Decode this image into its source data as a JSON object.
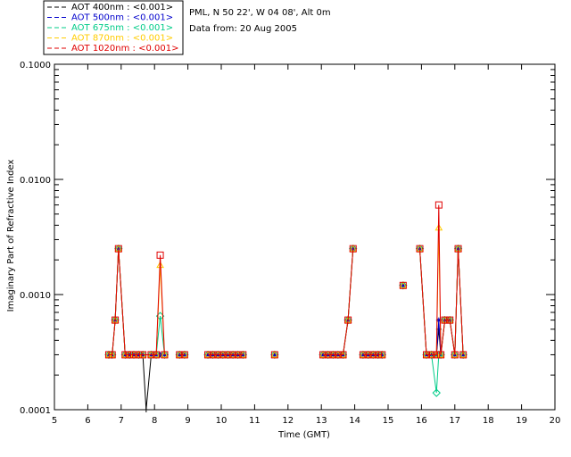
{
  "info": {
    "line1": "PML, N 50 22', W 04 08', Alt 0m",
    "line2": "Data from: 20 Aug 2005"
  },
  "chart_data": {
    "type": "line",
    "xlabel": "Time (GMT)",
    "ylabel": "Imaginary Part of Refractive Index",
    "xlim": [
      5,
      20
    ],
    "ylim": [
      0.0001,
      0.1
    ],
    "yscale": "log",
    "xticks": [
      5,
      6,
      7,
      8,
      9,
      10,
      11,
      12,
      13,
      14,
      15,
      16,
      17,
      18,
      19,
      20
    ],
    "yticks": [
      {
        "value": 0.0001,
        "label": "0.0001"
      },
      {
        "value": 0.001,
        "label": "0.0010"
      },
      {
        "value": 0.01,
        "label": "0.0100"
      },
      {
        "value": 0.1,
        "label": "0.1000"
      }
    ],
    "legend_position": "top-left",
    "series": [
      {
        "name": "AOT  400nm : <0.001>",
        "color": "#000000",
        "marker": "plus",
        "points": [
          [
            6.63,
            0.0003
          ],
          [
            6.73,
            0.0003
          ],
          [
            6.82,
            0.0006
          ],
          [
            6.92,
            0.0025
          ],
          [
            7.12,
            0.0003
          ],
          [
            7.25,
            0.0003
          ],
          [
            7.38,
            0.0003
          ],
          [
            7.52,
            0.0003
          ],
          [
            7.65,
            0.0003
          ],
          [
            7.75,
            0.0001
          ],
          [
            7.9,
            0.0003
          ],
          [
            8.05,
            0.0003
          ],
          [
            8.17,
            0.0003
          ],
          [
            8.3,
            0.0003
          ],
          null,
          [
            8.75,
            0.0003
          ],
          [
            8.9,
            0.0003
          ],
          null,
          [
            9.6,
            0.0003
          ],
          [
            9.75,
            0.0003
          ],
          [
            9.9,
            0.0003
          ],
          [
            10.05,
            0.0003
          ],
          [
            10.2,
            0.0003
          ],
          [
            10.35,
            0.0003
          ],
          [
            10.5,
            0.0003
          ],
          [
            10.65,
            0.0003
          ],
          null,
          [
            11.6,
            0.0003
          ],
          null,
          [
            13.05,
            0.0003
          ],
          [
            13.2,
            0.0003
          ],
          [
            13.35,
            0.0003
          ],
          [
            13.5,
            0.0003
          ],
          [
            13.65,
            0.0003
          ],
          [
            13.8,
            0.0006
          ],
          [
            13.95,
            0.0025
          ],
          null,
          [
            14.25,
            0.0003
          ],
          [
            14.4,
            0.0003
          ],
          [
            14.55,
            0.0003
          ],
          [
            14.7,
            0.0003
          ],
          [
            14.82,
            0.0003
          ],
          null,
          [
            15.45,
            0.0012
          ],
          null,
          [
            15.95,
            0.0025
          ],
          [
            16.15,
            0.0003
          ],
          [
            16.3,
            0.0003
          ],
          [
            16.45,
            0.0003
          ],
          [
            16.52,
            0.0005
          ],
          [
            16.58,
            0.0003
          ],
          [
            16.7,
            0.0006
          ],
          [
            16.85,
            0.0006
          ],
          [
            17.0,
            0.0003
          ],
          [
            17.1,
            0.0025
          ],
          [
            17.25,
            0.0003
          ]
        ]
      },
      {
        "name": "AOT  500nm : <0.001>",
        "color": "#0000cc",
        "marker": "asterisk",
        "points": [
          [
            6.63,
            0.0003
          ],
          [
            6.73,
            0.0003
          ],
          [
            6.82,
            0.0006
          ],
          [
            6.92,
            0.0025
          ],
          [
            7.12,
            0.0003
          ],
          [
            7.25,
            0.0003
          ],
          [
            7.38,
            0.0003
          ],
          [
            7.52,
            0.0003
          ],
          [
            7.65,
            0.0003
          ],
          [
            7.9,
            0.0003
          ],
          [
            8.05,
            0.0003
          ],
          [
            8.17,
            0.0003
          ],
          [
            8.3,
            0.0003
          ],
          null,
          [
            8.75,
            0.0003
          ],
          [
            8.9,
            0.0003
          ],
          null,
          [
            9.6,
            0.0003
          ],
          [
            9.75,
            0.0003
          ],
          [
            9.9,
            0.0003
          ],
          [
            10.05,
            0.0003
          ],
          [
            10.2,
            0.0003
          ],
          [
            10.35,
            0.0003
          ],
          [
            10.5,
            0.0003
          ],
          [
            10.65,
            0.0003
          ],
          null,
          [
            11.6,
            0.0003
          ],
          null,
          [
            13.05,
            0.0003
          ],
          [
            13.2,
            0.0003
          ],
          [
            13.35,
            0.0003
          ],
          [
            13.5,
            0.0003
          ],
          [
            13.65,
            0.0003
          ],
          [
            13.8,
            0.0006
          ],
          [
            13.95,
            0.0025
          ],
          null,
          [
            14.25,
            0.0003
          ],
          [
            14.4,
            0.0003
          ],
          [
            14.55,
            0.0003
          ],
          [
            14.7,
            0.0003
          ],
          [
            14.82,
            0.0003
          ],
          null,
          [
            15.45,
            0.0012
          ],
          null,
          [
            15.95,
            0.0025
          ],
          [
            16.15,
            0.0003
          ],
          [
            16.3,
            0.0003
          ],
          [
            16.45,
            0.0003
          ],
          [
            16.52,
            0.0006
          ],
          [
            16.58,
            0.0003
          ],
          [
            16.7,
            0.0006
          ],
          [
            16.85,
            0.0006
          ],
          [
            17.0,
            0.0003
          ],
          [
            17.1,
            0.0025
          ],
          [
            17.25,
            0.0003
          ]
        ]
      },
      {
        "name": "AOT  675nm : <0.001>",
        "color": "#00cc88",
        "marker": "diamond",
        "points": [
          [
            6.63,
            0.0003
          ],
          [
            6.73,
            0.0003
          ],
          [
            6.82,
            0.0006
          ],
          [
            6.92,
            0.0025
          ],
          [
            7.12,
            0.0003
          ],
          [
            7.25,
            0.0003
          ],
          [
            7.38,
            0.0003
          ],
          [
            7.52,
            0.0003
          ],
          [
            7.65,
            0.0003
          ],
          [
            7.9,
            0.0003
          ],
          [
            8.05,
            0.0003
          ],
          [
            8.17,
            0.00065
          ],
          [
            8.3,
            0.0003
          ],
          null,
          [
            8.75,
            0.0003
          ],
          [
            8.9,
            0.0003
          ],
          null,
          [
            9.6,
            0.0003
          ],
          [
            9.75,
            0.0003
          ],
          [
            9.9,
            0.0003
          ],
          [
            10.05,
            0.0003
          ],
          [
            10.2,
            0.0003
          ],
          [
            10.35,
            0.0003
          ],
          [
            10.5,
            0.0003
          ],
          [
            10.65,
            0.0003
          ],
          null,
          [
            11.6,
            0.0003
          ],
          null,
          [
            13.05,
            0.0003
          ],
          [
            13.2,
            0.0003
          ],
          [
            13.35,
            0.0003
          ],
          [
            13.5,
            0.0003
          ],
          [
            13.65,
            0.0003
          ],
          [
            13.8,
            0.0006
          ],
          [
            13.95,
            0.0025
          ],
          null,
          [
            14.25,
            0.0003
          ],
          [
            14.4,
            0.0003
          ],
          [
            14.55,
            0.0003
          ],
          [
            14.7,
            0.0003
          ],
          [
            14.82,
            0.0003
          ],
          null,
          [
            15.45,
            0.0012
          ],
          null,
          [
            15.95,
            0.0025
          ],
          [
            16.15,
            0.0003
          ],
          [
            16.3,
            0.0003
          ],
          [
            16.45,
            0.00014
          ],
          [
            16.52,
            0.0003
          ],
          [
            16.58,
            0.0003
          ],
          [
            16.7,
            0.0006
          ],
          [
            16.85,
            0.0006
          ],
          [
            17.0,
            0.0003
          ],
          [
            17.1,
            0.0025
          ],
          [
            17.25,
            0.0003
          ]
        ]
      },
      {
        "name": "AOT  870nm : <0.001>",
        "color": "#ffcc00",
        "marker": "triangle",
        "points": [
          [
            6.63,
            0.0003
          ],
          [
            6.73,
            0.0003
          ],
          [
            6.82,
            0.0006
          ],
          [
            6.92,
            0.0025
          ],
          [
            7.12,
            0.0003
          ],
          [
            7.25,
            0.0003
          ],
          [
            7.38,
            0.0003
          ],
          [
            7.52,
            0.0003
          ],
          [
            7.65,
            0.0003
          ],
          [
            7.9,
            0.0003
          ],
          [
            8.05,
            0.0003
          ],
          [
            8.17,
            0.0018
          ],
          [
            8.3,
            0.0003
          ],
          null,
          [
            8.75,
            0.0003
          ],
          [
            8.9,
            0.0003
          ],
          null,
          [
            9.6,
            0.0003
          ],
          [
            9.75,
            0.0003
          ],
          [
            9.9,
            0.0003
          ],
          [
            10.05,
            0.0003
          ],
          [
            10.2,
            0.0003
          ],
          [
            10.35,
            0.0003
          ],
          [
            10.5,
            0.0003
          ],
          [
            10.65,
            0.0003
          ],
          null,
          [
            11.6,
            0.0003
          ],
          null,
          [
            13.05,
            0.0003
          ],
          [
            13.2,
            0.0003
          ],
          [
            13.35,
            0.0003
          ],
          [
            13.5,
            0.0003
          ],
          [
            13.65,
            0.0003
          ],
          [
            13.8,
            0.0006
          ],
          [
            13.95,
            0.0025
          ],
          null,
          [
            14.25,
            0.0003
          ],
          [
            14.4,
            0.0003
          ],
          [
            14.55,
            0.0003
          ],
          [
            14.7,
            0.0003
          ],
          [
            14.82,
            0.0003
          ],
          null,
          [
            15.45,
            0.0012
          ],
          null,
          [
            15.95,
            0.0025
          ],
          [
            16.15,
            0.0003
          ],
          [
            16.3,
            0.0003
          ],
          [
            16.45,
            0.0003
          ],
          [
            16.52,
            0.0038
          ],
          [
            16.58,
            0.0003
          ],
          [
            16.7,
            0.0006
          ],
          [
            16.85,
            0.0006
          ],
          [
            17.0,
            0.0003
          ],
          [
            17.1,
            0.0025
          ],
          [
            17.25,
            0.0003
          ]
        ]
      },
      {
        "name": "AOT 1020nm : <0.001>",
        "color": "#e00000",
        "marker": "square",
        "points": [
          [
            6.63,
            0.0003
          ],
          [
            6.73,
            0.0003
          ],
          [
            6.82,
            0.0006
          ],
          [
            6.92,
            0.0025
          ],
          [
            7.12,
            0.0003
          ],
          [
            7.25,
            0.0003
          ],
          [
            7.38,
            0.0003
          ],
          [
            7.52,
            0.0003
          ],
          [
            7.65,
            0.0003
          ],
          [
            7.9,
            0.0003
          ],
          [
            8.05,
            0.0003
          ],
          [
            8.17,
            0.0022
          ],
          [
            8.3,
            0.0003
          ],
          null,
          [
            8.75,
            0.0003
          ],
          [
            8.9,
            0.0003
          ],
          null,
          [
            9.6,
            0.0003
          ],
          [
            9.75,
            0.0003
          ],
          [
            9.9,
            0.0003
          ],
          [
            10.05,
            0.0003
          ],
          [
            10.2,
            0.0003
          ],
          [
            10.35,
            0.0003
          ],
          [
            10.5,
            0.0003
          ],
          [
            10.65,
            0.0003
          ],
          null,
          [
            11.6,
            0.0003
          ],
          null,
          [
            13.05,
            0.0003
          ],
          [
            13.2,
            0.0003
          ],
          [
            13.35,
            0.0003
          ],
          [
            13.5,
            0.0003
          ],
          [
            13.65,
            0.0003
          ],
          [
            13.8,
            0.0006
          ],
          [
            13.95,
            0.0025
          ],
          null,
          [
            14.25,
            0.0003
          ],
          [
            14.4,
            0.0003
          ],
          [
            14.55,
            0.0003
          ],
          [
            14.7,
            0.0003
          ],
          [
            14.82,
            0.0003
          ],
          null,
          [
            15.45,
            0.0012
          ],
          null,
          [
            15.95,
            0.0025
          ],
          [
            16.15,
            0.0003
          ],
          [
            16.3,
            0.0003
          ],
          [
            16.45,
            0.0003
          ],
          [
            16.52,
            0.006
          ],
          [
            16.58,
            0.0003
          ],
          [
            16.7,
            0.0006
          ],
          [
            16.85,
            0.0006
          ],
          [
            17.0,
            0.0003
          ],
          [
            17.1,
            0.0025
          ],
          [
            17.25,
            0.0003
          ]
        ]
      }
    ]
  }
}
